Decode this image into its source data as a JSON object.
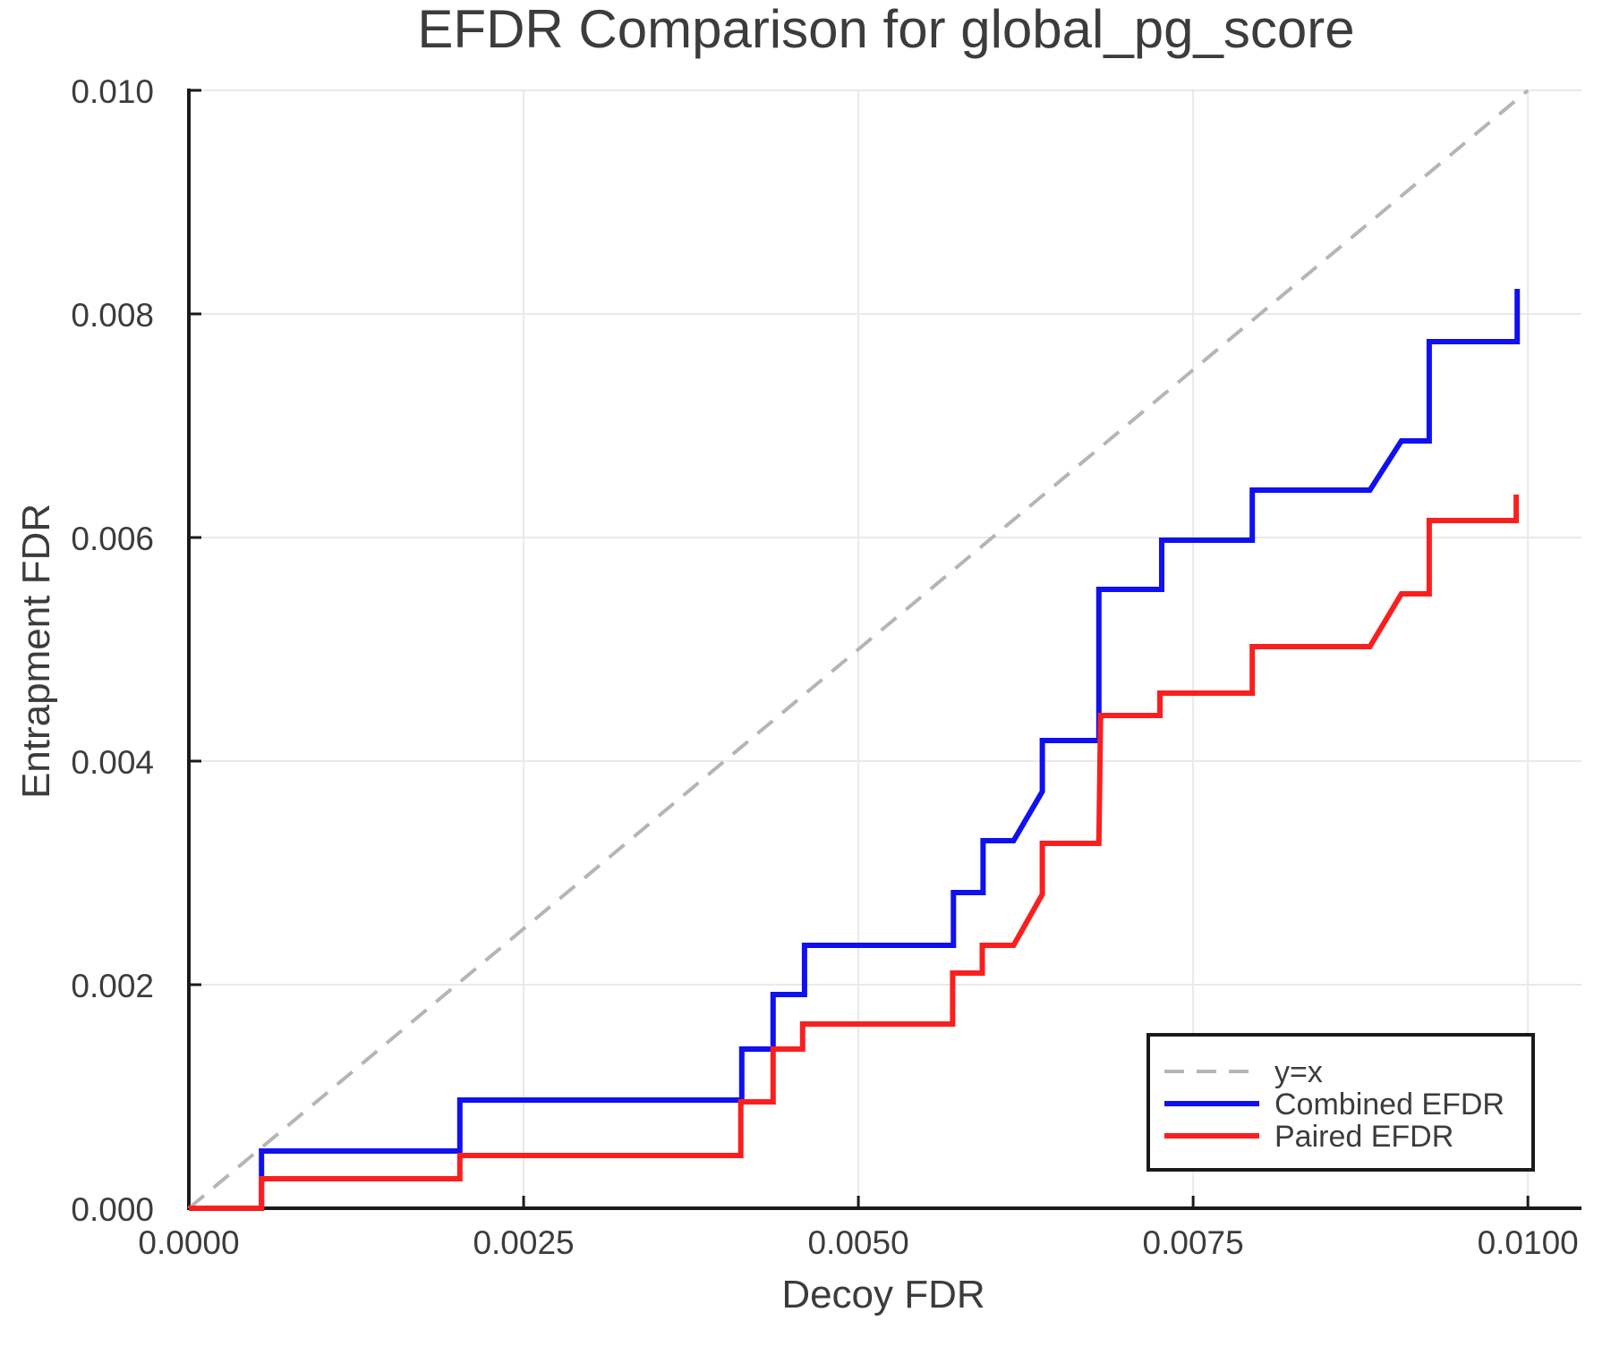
{
  "chart_data": {
    "type": "line",
    "title": "EFDR Comparison for global_pg_score",
    "xlabel": "Decoy FDR",
    "ylabel": "Entrapment FDR",
    "xlim": [
      0,
      0.0104
    ],
    "ylim": [
      0,
      0.01
    ],
    "grid": true,
    "background_color": "#ffffff",
    "grid_color": "#e9e9e9",
    "spine_color": "#1a1a1a",
    "text_color": "#3c3c3c",
    "x_ticks": {
      "values": [
        0,
        0.0025,
        0.005,
        0.0075,
        0.01
      ],
      "labels": [
        "0.0000",
        "0.0025",
        "0.0050",
        "0.0075",
        "0.0100"
      ]
    },
    "y_ticks": {
      "values": [
        0,
        0.002,
        0.004,
        0.006,
        0.008,
        0.01
      ],
      "labels": [
        "0.000",
        "0.002",
        "0.004",
        "0.006",
        "0.008",
        "0.010"
      ]
    },
    "legend": {
      "position": "lower right"
    },
    "series": [
      {
        "name": "y=x",
        "color": "#b5b5b5",
        "style": "dashed",
        "width": 4,
        "points": [
          [
            0,
            0
          ],
          [
            0.01,
            0.01
          ]
        ]
      },
      {
        "name": "Combined EFDR",
        "color": "#1010f0",
        "style": "solid",
        "width": 6,
        "points": [
          [
            0.0,
            0.0
          ],
          [
            0.000543,
            0.0
          ],
          [
            0.000543,
            0.000512
          ],
          [
            0.002024,
            0.000512
          ],
          [
            0.002024,
            0.000968
          ],
          [
            0.004129,
            0.000968
          ],
          [
            0.004129,
            0.001424
          ],
          [
            0.004363,
            0.001424
          ],
          [
            0.004363,
            0.001912
          ],
          [
            0.004598,
            0.001912
          ],
          [
            0.004598,
            0.002352
          ],
          [
            0.00571,
            0.002352
          ],
          [
            0.00571,
            0.002824
          ],
          [
            0.005931,
            0.002824
          ],
          [
            0.005931,
            0.003288
          ],
          [
            0.006159,
            0.003288
          ],
          [
            0.006374,
            0.003728
          ],
          [
            0.006374,
            0.004184
          ],
          [
            0.006796,
            0.004184
          ],
          [
            0.006796,
            0.005536
          ],
          [
            0.007265,
            0.005536
          ],
          [
            0.007265,
            0.005976
          ],
          [
            0.007942,
            0.005976
          ],
          [
            0.007942,
            0.006424
          ],
          [
            0.00882,
            0.006424
          ],
          [
            0.009055,
            0.006864
          ],
          [
            0.009263,
            0.006864
          ],
          [
            0.009263,
            0.007752
          ],
          [
            0.00992,
            0.007752
          ],
          [
            0.00992,
            0.008224
          ]
        ]
      },
      {
        "name": "Paired EFDR",
        "color": "#fa1f1f",
        "style": "solid",
        "width": 6,
        "points": [
          [
            0.0,
            0.0
          ],
          [
            0.000543,
            0.0
          ],
          [
            0.000543,
            0.000264
          ],
          [
            0.002024,
            0.000264
          ],
          [
            0.002024,
            0.000472
          ],
          [
            0.004122,
            0.000472
          ],
          [
            0.004122,
            0.000952
          ],
          [
            0.004363,
            0.000952
          ],
          [
            0.004363,
            0.001424
          ],
          [
            0.004584,
            0.001424
          ],
          [
            0.004584,
            0.001648
          ],
          [
            0.005704,
            0.001648
          ],
          [
            0.005704,
            0.002104
          ],
          [
            0.005925,
            0.002104
          ],
          [
            0.005925,
            0.002352
          ],
          [
            0.006159,
            0.002352
          ],
          [
            0.006374,
            0.002808
          ],
          [
            0.006374,
            0.003264
          ],
          [
            0.006796,
            0.003264
          ],
          [
            0.006809,
            0.004408
          ],
          [
            0.007252,
            0.004408
          ],
          [
            0.007252,
            0.004608
          ],
          [
            0.007942,
            0.004608
          ],
          [
            0.007942,
            0.005024
          ],
          [
            0.00882,
            0.005024
          ],
          [
            0.009055,
            0.005496
          ],
          [
            0.009263,
            0.005496
          ],
          [
            0.009263,
            0.006152
          ],
          [
            0.009913,
            0.006152
          ],
          [
            0.009913,
            0.006384
          ]
        ]
      }
    ]
  }
}
